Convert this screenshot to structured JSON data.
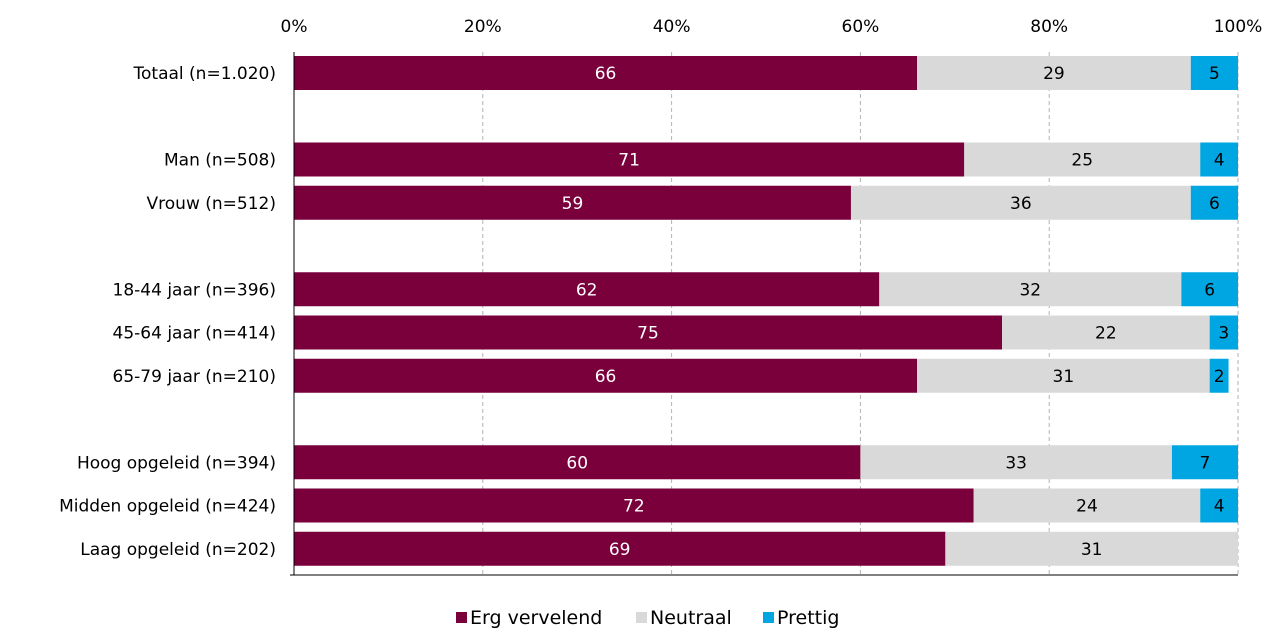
{
  "chart_data": {
    "type": "bar",
    "orientation": "horizontal",
    "stacked": true,
    "x_ticks": [
      "0%",
      "20%",
      "40%",
      "60%",
      "80%",
      "100%"
    ],
    "xlim": [
      0,
      100
    ],
    "grid": "vertical dashed",
    "legend_position": "bottom",
    "categories": [
      "Totaal (n=1.020)",
      "",
      "Man (n=508)",
      "Vrouw (n=512)",
      "",
      "18-44 jaar (n=396)",
      "45-64 jaar (n=414)",
      "65-79 jaar (n=210)",
      "",
      "Hoog opgeleid (n=394)",
      "Midden opgeleid (n=424)",
      "Laag opgeleid (n=202)"
    ],
    "series": [
      {
        "name": "Erg vervelend",
        "color": "#7a003c",
        "label_color": "#ffffff",
        "values": [
          66,
          null,
          71,
          59,
          null,
          62,
          75,
          66,
          null,
          60,
          72,
          69
        ]
      },
      {
        "name": "Neutraal",
        "color": "#d9d9d9",
        "label_color": "#000000",
        "values": [
          29,
          null,
          25,
          36,
          null,
          32,
          22,
          31,
          null,
          33,
          24,
          31
        ]
      },
      {
        "name": "Prettig",
        "color": "#00a6e2",
        "label_color": "#000000",
        "values": [
          5,
          null,
          4,
          6,
          null,
          6,
          3,
          2,
          null,
          7,
          4,
          null
        ]
      }
    ]
  }
}
